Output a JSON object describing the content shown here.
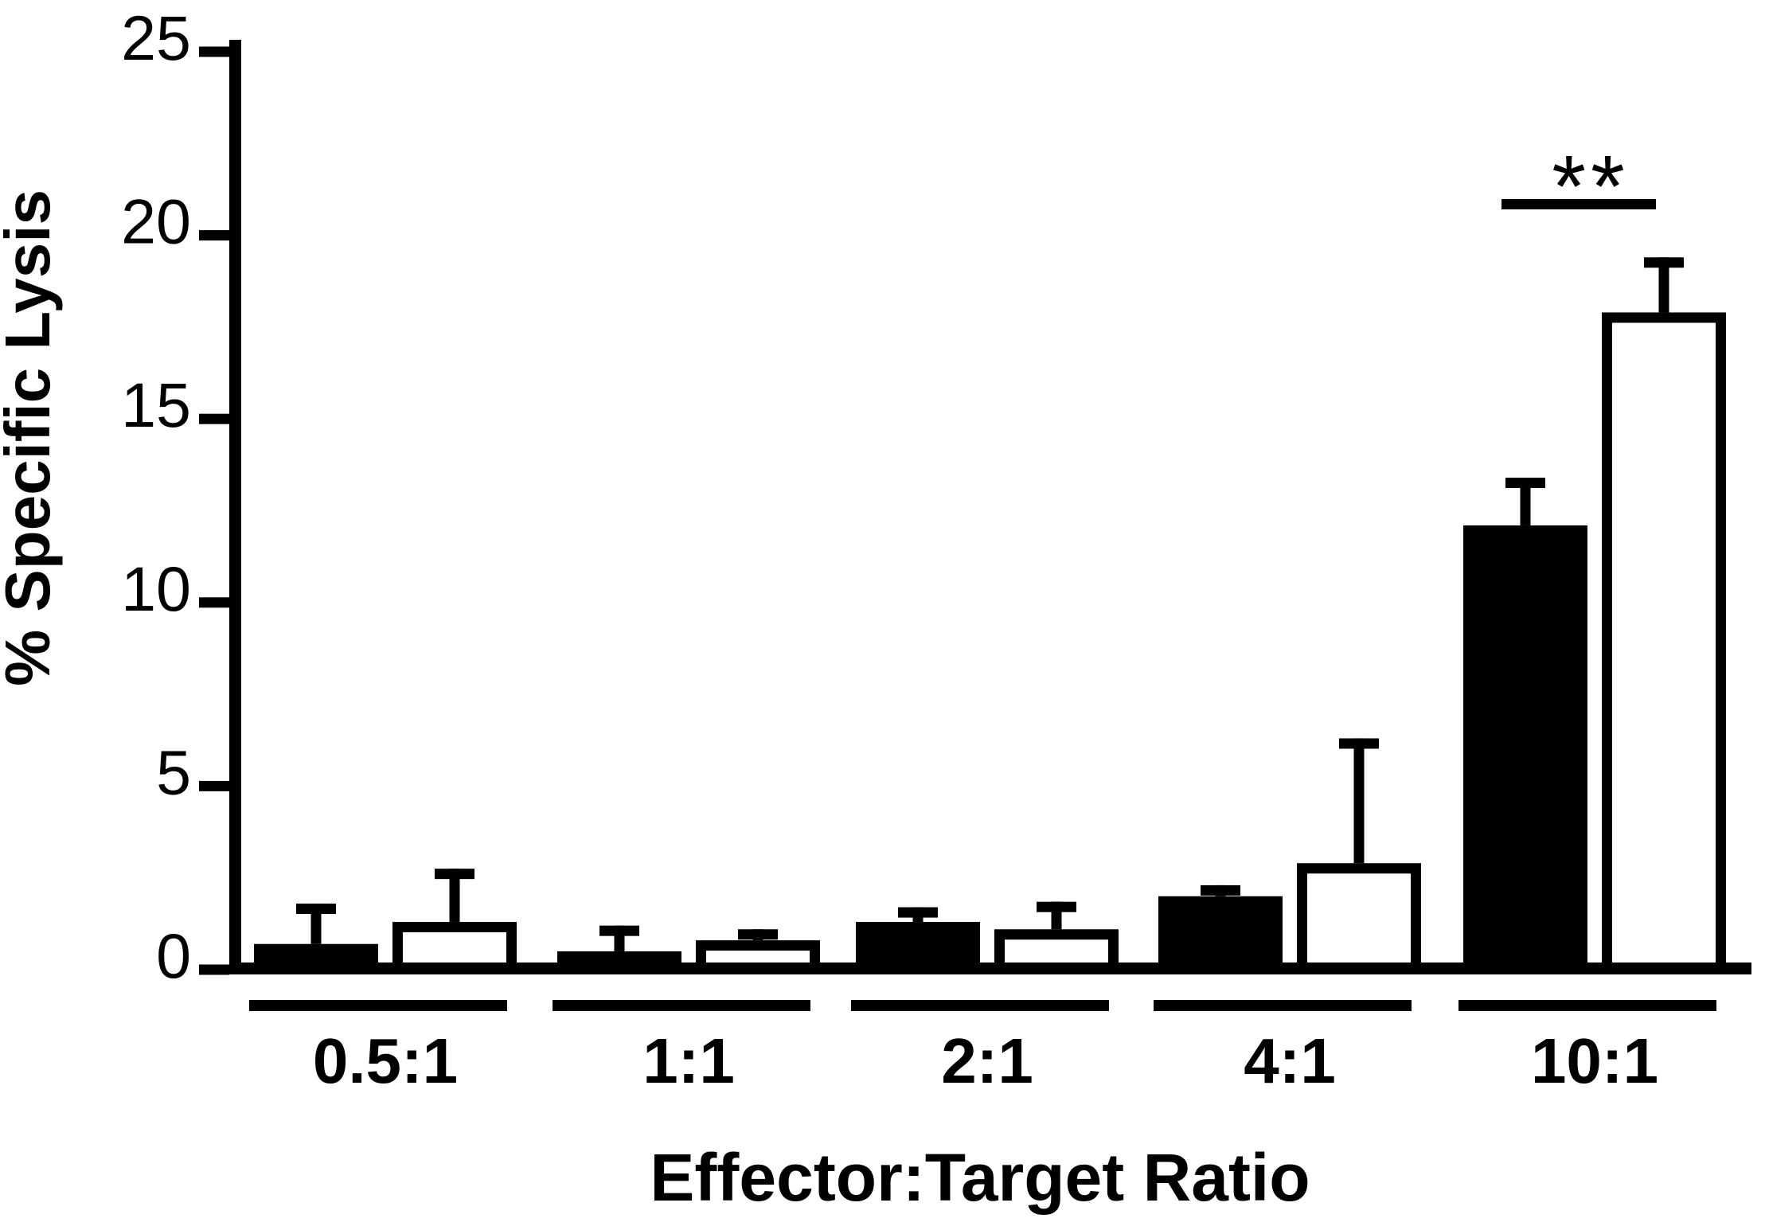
{
  "figure": {
    "background_color": "#ffffff",
    "ink_color": "#000000"
  },
  "chart_data": {
    "type": "bar",
    "title": "",
    "xlabel": "Effector:Target Ratio",
    "ylabel": "% Specific Lysis",
    "categories": [
      "0.5:1",
      "1:1",
      "2:1",
      "4:1",
      "10:1"
    ],
    "series": [
      {
        "name": "filled-black-bars",
        "fill": "#000000",
        "values": [
          0.7,
          0.5,
          1.3,
          2.0,
          12.1
        ],
        "error_upper": [
          1.1,
          0.7,
          0.4,
          0.3,
          1.3
        ]
      },
      {
        "name": "open-white-bars",
        "fill": "#ffffff",
        "values": [
          1.3,
          0.8,
          1.1,
          2.9,
          17.9
        ],
        "error_upper": [
          1.45,
          0.3,
          0.75,
          3.4,
          1.5
        ]
      }
    ],
    "ylim": [
      0,
      25
    ],
    "yticks": [
      0,
      5,
      10,
      15,
      20,
      25
    ],
    "grid": false,
    "legend_position": "none",
    "error_bars": "upper whisker with cap",
    "annotations": [
      {
        "label": "**",
        "type": "significance-bracket",
        "category": "10:1",
        "between": [
          "filled-black-bars",
          "open-white-bars"
        ]
      }
    ]
  }
}
